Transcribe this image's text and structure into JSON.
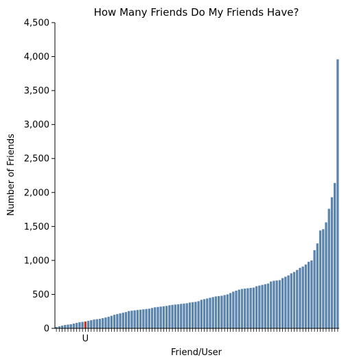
{
  "chart_data": {
    "type": "bar",
    "title": "How Many Friends Do My Friends Have?",
    "xlabel": "Friend/User",
    "ylabel": "Number of Friends",
    "ylim": [
      0,
      4500
    ],
    "yticks": [
      0,
      500,
      1000,
      1500,
      2000,
      2500,
      3000,
      3500,
      4000,
      4500
    ],
    "ytick_labels": [
      "0",
      "500",
      "1,000",
      "1,500",
      "2,000",
      "2,500",
      "3,000",
      "3,500",
      "4,000",
      "4,500"
    ],
    "highlight_label": "U",
    "highlight_index": 10,
    "colors": {
      "bar": "#5b84ad",
      "highlight": "#c0392b",
      "axis": "#000000"
    },
    "values": [
      20,
      30,
      40,
      50,
      55,
      60,
      70,
      80,
      90,
      95,
      100,
      110,
      120,
      130,
      135,
      140,
      150,
      160,
      170,
      185,
      200,
      210,
      220,
      230,
      240,
      255,
      260,
      265,
      270,
      275,
      280,
      285,
      290,
      300,
      310,
      315,
      320,
      325,
      330,
      340,
      345,
      350,
      355,
      360,
      365,
      370,
      380,
      385,
      390,
      400,
      420,
      430,
      440,
      450,
      460,
      470,
      475,
      480,
      490,
      500,
      520,
      540,
      555,
      570,
      580,
      585,
      590,
      595,
      600,
      620,
      630,
      640,
      650,
      660,
      690,
      700,
      705,
      710,
      740,
      760,
      780,
      810,
      830,
      860,
      890,
      910,
      940,
      980,
      1000,
      1150,
      1250,
      1440,
      1460,
      1560,
      1760,
      1930,
      2140,
      3960
    ]
  }
}
